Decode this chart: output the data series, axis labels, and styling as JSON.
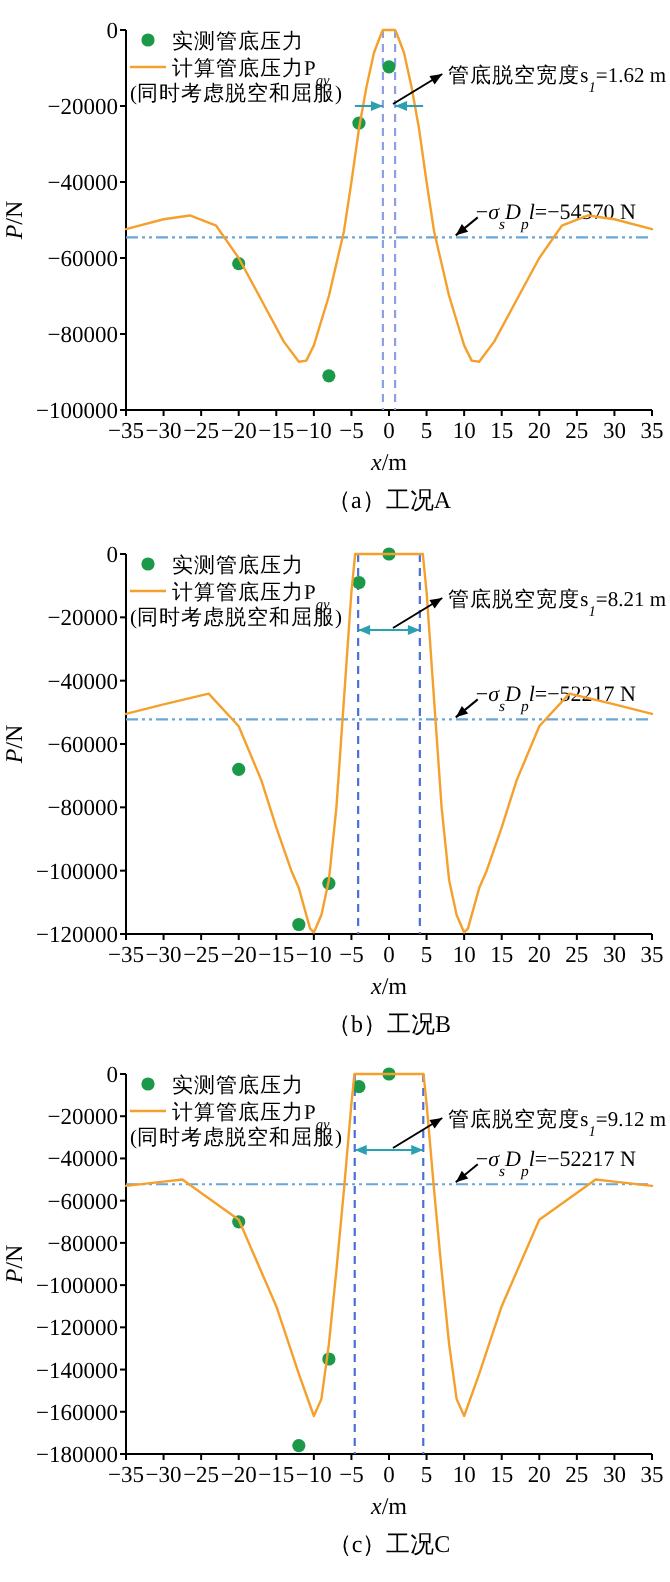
{
  "chart_data": [
    {
      "type": "line",
      "title": "（a）工况A",
      "xlabel": "*x*/m",
      "ylabel": "*P*/N",
      "xlim": [
        -35,
        35
      ],
      "ylim": [
        -100000,
        0
      ],
      "xticks": [
        -35,
        -30,
        -25,
        -20,
        -15,
        -10,
        -5,
        0,
        5,
        10,
        15,
        20,
        25,
        30,
        35
      ],
      "yticks": [
        -100000,
        -80000,
        -60000,
        -40000,
        -20000,
        0
      ],
      "legend": "top left",
      "series": [
        {
          "type": "scatter",
          "name": "实测管底压力",
          "color": "#1a9a48",
          "marker": "circle",
          "x": [
            -20,
            -8,
            -4,
            0
          ],
          "values": [
            -61500,
            -91000,
            -24500,
            -9700
          ]
        },
        {
          "type": "line",
          "name": "计算管底压力P$_{gy}$",
          "color": "#f5a02c",
          "x": [
            -35,
            -30,
            -26.5,
            -23,
            -20,
            -17,
            -14,
            -12,
            -11,
            -10,
            -8,
            -6,
            -5,
            -4,
            -3,
            -2,
            -1,
            -0.81,
            0.81,
            1,
            2,
            3,
            4,
            5,
            6,
            8,
            10,
            11,
            12,
            14,
            17,
            20,
            23,
            26.5,
            30,
            35
          ],
          "values": [
            -52400,
            -49800,
            -48800,
            -51500,
            -60000,
            -71000,
            -82000,
            -87300,
            -87000,
            -83000,
            -70000,
            -53000,
            -40000,
            -26000,
            -15000,
            -6000,
            -800,
            0,
            0,
            -800,
            -6000,
            -15000,
            -26000,
            -40000,
            -53000,
            -70000,
            -83000,
            -87000,
            -87300,
            -82000,
            -71000,
            -60000,
            -51500,
            -48800,
            -49800,
            -52400
          ]
        }
      ],
      "ref_lines": [
        {
          "axis": "y",
          "value": -54570,
          "label": "−*σ*$_{s}$*D*$_{p}$*l*=−54570 N",
          "color": "#6aa6d6",
          "line_style": "dotted"
        },
        {
          "axis": "x",
          "value": -0.81,
          "color": "#8f9ee8",
          "line_style": "dashed"
        },
        {
          "axis": "x",
          "value": 0.81,
          "color": "#8f9ee8",
          "line_style": "dashed"
        }
      ],
      "annotations": [
        "(同时考虑脱空和屈服)",
        "管底脱空宽度s$_{1}$=1.62 m"
      ]
    },
    {
      "type": "line",
      "title": "（b）工况B",
      "xlabel": "*x*/m",
      "ylabel": "*P*/N",
      "xlim": [
        -35,
        35
      ],
      "ylim": [
        -120000,
        0
      ],
      "xticks": [
        -35,
        -30,
        -25,
        -20,
        -15,
        -10,
        -5,
        0,
        5,
        10,
        15,
        20,
        25,
        30,
        35
      ],
      "yticks": [
        -120000,
        -100000,
        -80000,
        -60000,
        -40000,
        -20000,
        0
      ],
      "legend": "top left",
      "series": [
        {
          "type": "scatter",
          "name": "实测管底压力",
          "color": "#1a9a48",
          "marker": "circle",
          "x": [
            -20,
            -12,
            -8,
            -4,
            0
          ],
          "values": [
            -68000,
            -117000,
            -104000,
            -9000,
            0
          ]
        },
        {
          "type": "line",
          "name": "计算管底压力P$_{gy}$",
          "color": "#f5a02c",
          "x": [
            -35,
            -30,
            -24,
            -20,
            -17,
            -15,
            -13,
            -12,
            -10.5,
            -10,
            -9,
            -8,
            -7,
            -6,
            -5,
            -4.5,
            4.5,
            5,
            6,
            7,
            8,
            9,
            10,
            10.5,
            12,
            13,
            15,
            17,
            20,
            24,
            30,
            35
          ],
          "values": [
            -50500,
            -47500,
            -44100,
            -54400,
            -71400,
            -86300,
            -100000,
            -105500,
            -118300,
            -119500,
            -114000,
            -103000,
            -80000,
            -46000,
            -12000,
            0,
            0,
            -12000,
            -46000,
            -80000,
            -103000,
            -114000,
            -119500,
            -118300,
            -105500,
            -100000,
            -86300,
            -71400,
            -54400,
            -44100,
            -47500,
            -50500
          ]
        }
      ],
      "ref_lines": [
        {
          "axis": "y",
          "value": -52217,
          "label": "−*σ*$_{s}$*D*$_{p}$*l*=−52217 N",
          "color": "#6aa6d6",
          "line_style": "dotted"
        },
        {
          "axis": "x",
          "value": -4.105,
          "color": "#4a6fd8",
          "line_style": "dashed"
        },
        {
          "axis": "x",
          "value": 4.105,
          "color": "#4a6fd8",
          "line_style": "dashed"
        }
      ],
      "annotations": [
        "(同时考虑脱空和屈服)",
        "管底脱空宽度s$_{1}$=8.21 m"
      ]
    },
    {
      "type": "line",
      "title": "（c）工况C",
      "xlabel": "*x*/m",
      "ylabel": "*P*/N",
      "xlim": [
        -35,
        35
      ],
      "ylim": [
        -180000,
        0
      ],
      "xticks": [
        -35,
        -30,
        -25,
        -20,
        -15,
        -10,
        -5,
        0,
        5,
        10,
        15,
        20,
        25,
        30,
        35
      ],
      "yticks": [
        -180000,
        -160000,
        -140000,
        -120000,
        -100000,
        -80000,
        -60000,
        -40000,
        -20000,
        0
      ],
      "legend": "top left",
      "series": [
        {
          "type": "scatter",
          "name": "实测管底压力",
          "color": "#1a9a48",
          "marker": "circle",
          "x": [
            -20,
            -12,
            -8,
            -4,
            0
          ],
          "values": [
            -70000,
            -176000,
            -135000,
            -6000,
            0
          ]
        },
        {
          "type": "line",
          "name": "计算管底压力P$_{gy}$",
          "color": "#f5a02c",
          "x": [
            -35,
            -30,
            -27.5,
            -20,
            -15,
            -12,
            -10,
            -9,
            -8,
            -7,
            -6,
            -5,
            -4.6,
            4.6,
            5,
            6,
            7,
            8,
            9,
            10,
            12,
            15,
            20,
            27.5,
            30,
            35
          ],
          "values": [
            -53000,
            -51000,
            -50000,
            -69000,
            -110000,
            -142000,
            -162000,
            -154000,
            -128000,
            -93000,
            -55000,
            -14000,
            0,
            0,
            -14000,
            -55000,
            -93000,
            -128000,
            -154000,
            -162000,
            -142000,
            -110000,
            -69000,
            -50000,
            -51000,
            -53000
          ]
        }
      ],
      "ref_lines": [
        {
          "axis": "y",
          "value": -52217,
          "label": "−*σ*$_{s}$*D*$_{p}$*l*=−52217 N",
          "color": "#6aa6d6",
          "line_style": "dotted"
        },
        {
          "axis": "x",
          "value": -4.56,
          "color": "#4a6fd8",
          "line_style": "dashed"
        },
        {
          "axis": "x",
          "value": 4.56,
          "color": "#4a6fd8",
          "line_style": "dashed"
        }
      ],
      "annotations": [
        "(同时考虑脱空和屈服)",
        "管底脱空宽度s$_{1}$=9.12 m"
      ]
    }
  ]
}
